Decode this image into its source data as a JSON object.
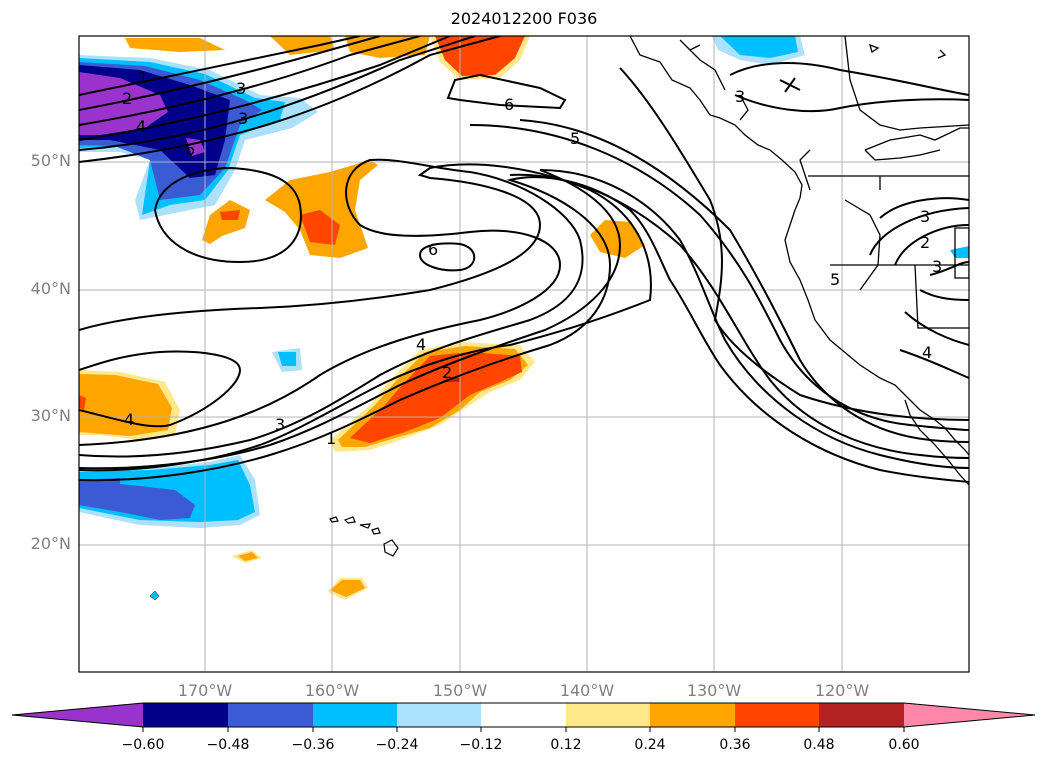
{
  "title": "2024012200 F036",
  "map": {
    "lat_ticks": [
      "50°N",
      "40°N",
      "30°N",
      "20°N"
    ],
    "lon_ticks": [
      "170°W",
      "160°W",
      "150°W",
      "140°W",
      "130°W",
      "120°W"
    ],
    "contour_labels": [
      "1",
      "2",
      "3",
      "4",
      "3",
      "6",
      "6",
      "5",
      "6",
      "3",
      "4",
      "3",
      "2",
      "1",
      "4",
      "3",
      "2",
      "3",
      "5",
      "4"
    ]
  },
  "colorbar": {
    "colors": [
      "#9933cc",
      "#00008b",
      "#3b5bd5",
      "#00bfff",
      "#abe1fa",
      "#ffffff",
      "#ffe88a",
      "#ffa500",
      "#ff4500",
      "#b22222",
      "#ff88aa"
    ],
    "ticks": [
      "−0.60",
      "−0.48",
      "−0.36",
      "−0.24",
      "−0.12",
      "0.12",
      "0.24",
      "0.36",
      "0.48",
      "0.60"
    ]
  }
}
